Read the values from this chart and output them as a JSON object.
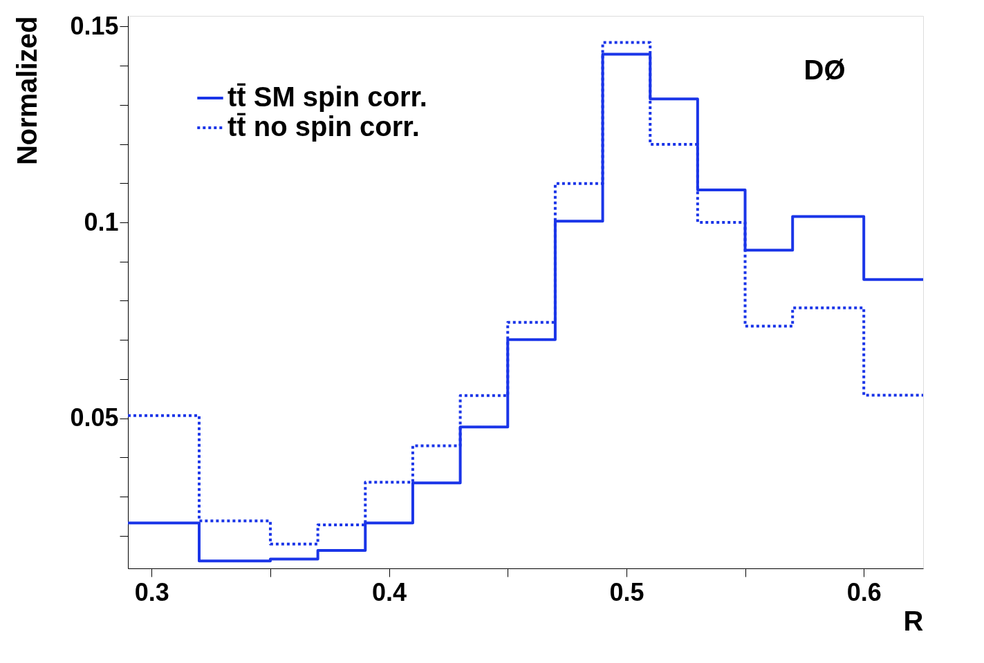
{
  "chart_data": {
    "type": "histogram",
    "ylabel": "Normalized",
    "xlabel": "R",
    "bins": [
      0.29,
      0.32,
      0.35,
      0.37,
      0.39,
      0.41,
      0.43,
      0.45,
      0.47,
      0.49,
      0.51,
      0.53,
      0.55,
      0.57,
      0.6,
      0.625
    ],
    "series": [
      {
        "name": "tt̄ SM spin corr.",
        "color": "#1a35e8",
        "line_style": "solid",
        "values": [
          0.0233,
          0.0136,
          0.0141,
          0.0163,
          0.0233,
          0.0335,
          0.0478,
          0.0701,
          0.1003,
          0.1429,
          0.1315,
          0.1083,
          0.0929,
          0.1015,
          0.0854
        ]
      },
      {
        "name": "tt̄ no spin corr.",
        "color": "#1a35e8",
        "line_style": "dotted",
        "values": [
          0.0507,
          0.0238,
          0.0179,
          0.0228,
          0.0337,
          0.043,
          0.0558,
          0.0745,
          0.1099,
          0.1459,
          0.1199,
          0.1,
          0.0735,
          0.0782,
          0.0559
        ]
      }
    ],
    "xlim": [
      0.29,
      0.625
    ],
    "xticks": [
      0.3,
      {
        "value": 0.35,
        "label": null
      },
      0.4,
      {
        "value": 0.45,
        "label": null
      },
      0.5,
      {
        "value": 0.55,
        "label": null
      },
      0.6
    ],
    "ylim": [
      0.0117,
      0.1527
    ],
    "yticks": [
      {
        "value": 0.02,
        "label": null
      },
      {
        "value": 0.03,
        "label": null
      },
      {
        "value": 0.04,
        "label": null
      },
      0.05,
      {
        "value": 0.06,
        "label": null
      },
      {
        "value": 0.07,
        "label": null
      },
      {
        "value": 0.08,
        "label": null
      },
      {
        "value": 0.09,
        "label": null
      },
      0.1,
      {
        "value": 0.11,
        "label": null
      },
      {
        "value": 0.12,
        "label": null
      },
      {
        "value": 0.13,
        "label": null
      },
      {
        "value": 0.14,
        "label": null
      },
      0.15
    ],
    "annotations": [
      "DØ"
    ],
    "legend": "top left",
    "grid": false,
    "marker": "none"
  }
}
